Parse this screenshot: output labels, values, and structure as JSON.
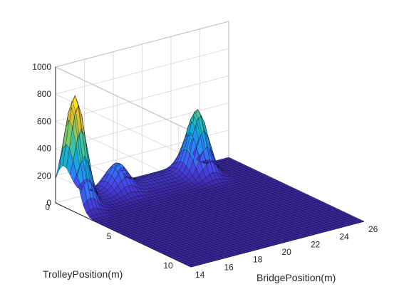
{
  "chart_data": {
    "type": "surface",
    "title": "",
    "xlabel": "BridgePosition(m)",
    "ylabel": "TrolleyPosition(m)",
    "zlabel": "",
    "xlim": [
      14,
      26
    ],
    "ylim": [
      0,
      11
    ],
    "zlim": [
      0,
      1000
    ],
    "xticks": [
      14,
      16,
      18,
      20,
      22,
      24,
      26
    ],
    "yticks": [
      0,
      5,
      10
    ],
    "zticks": [
      0,
      200,
      400,
      600,
      800,
      1000
    ],
    "grid": true,
    "colormap": "parula",
    "surface_components": [
      {
        "shape": "peak",
        "x": 14.5,
        "y": 1.0,
        "height": 780
      },
      {
        "shape": "peak",
        "x": 23.0,
        "y": 1.0,
        "height": 440
      },
      {
        "shape": "peak",
        "x": 17.8,
        "y": 0.6,
        "height": 170
      },
      {
        "shape": "ridge",
        "y": 0.6,
        "x_range": [
          14,
          23
        ],
        "height": 45
      }
    ]
  }
}
